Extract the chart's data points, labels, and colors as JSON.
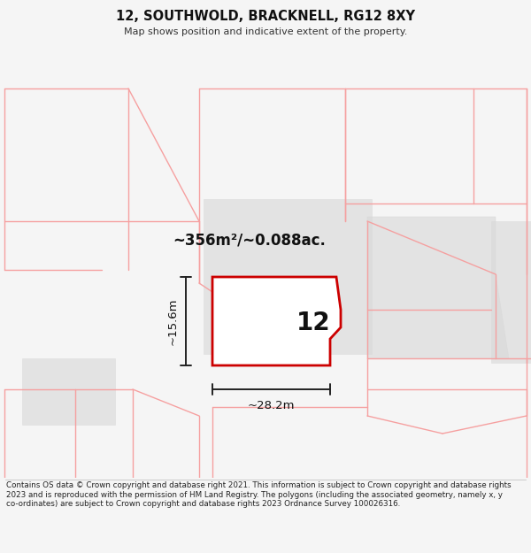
{
  "title": "12, SOUTHWOLD, BRACKNELL, RG12 8XY",
  "subtitle": "Map shows position and indicative extent of the property.",
  "footer": "Contains OS data © Crown copyright and database right 2021. This information is subject to Crown copyright and database rights 2023 and is reproduced with the permission of HM Land Registry. The polygons (including the associated geometry, namely x, y co-ordinates) are subject to Crown copyright and database rights 2023 Ordnance Survey 100026316.",
  "bg_color": "#f5f5f5",
  "map_bg_color": "#ffffff",
  "area_text": "~356m²/~0.088ac.",
  "width_text": "~28.2m",
  "height_text": "~15.6m",
  "house_number": "12",
  "main_poly_fill": "#ffffff",
  "main_poly_edge": "#cc0000",
  "main_poly_lw": 2.0,
  "gray_poly_fill": "#d8d8d8",
  "gray_poly_alpha": 0.6,
  "red_line_color": "#f5a0a0",
  "red_line_lw": 1.0,
  "dim_line_color": "#222222",
  "dim_line_lw": 1.4
}
